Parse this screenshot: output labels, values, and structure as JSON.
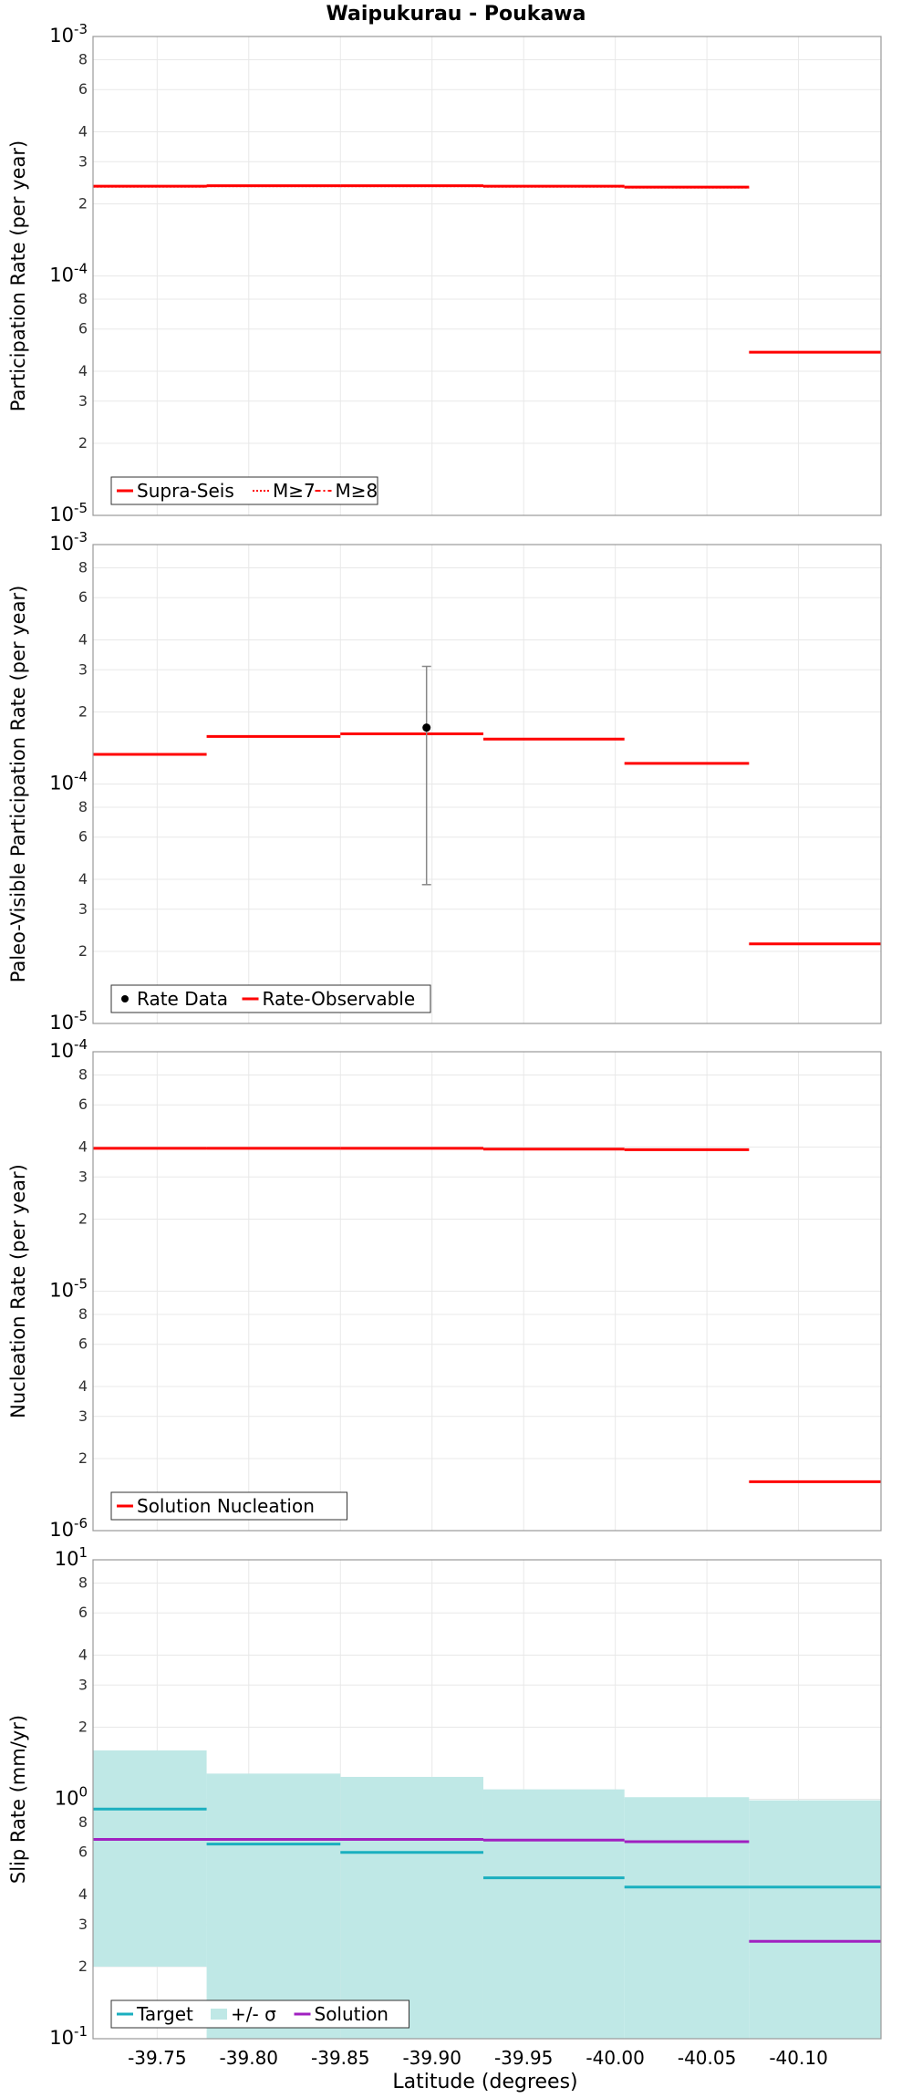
{
  "figure": {
    "title": "Waipukurau - Poukawa",
    "xlabel": "Latitude (degrees)"
  },
  "colors": {
    "red": "#ff0000",
    "target": "#1aafbf",
    "band": "#bfe8e6",
    "solution": "#a020c0",
    "grid": "#e8e8e8",
    "errorbar": "#888888"
  },
  "chart_data": [
    {
      "type": "line",
      "title": "Waipukurau - Poukawa",
      "xlabel": "",
      "ylabel": "Participation Rate (per year)",
      "yscale": "log",
      "ylim": [
        1e-05,
        0.001
      ],
      "xlim": [
        -39.715,
        -40.145
      ],
      "grid": true,
      "legend_position": "bottom-left",
      "legend": [
        "Supra-Seis",
        "M≥7",
        "M≥8"
      ],
      "series": [
        {
          "name": "Supra-Seis",
          "style": "solid",
          "segments": [
            {
              "x": [
                -39.715,
                -39.777
              ],
              "y": 0.000237
            },
            {
              "x": [
                -39.777,
                -39.85
              ],
              "y": 0.000238
            },
            {
              "x": [
                -39.85,
                -39.928
              ],
              "y": 0.000238
            },
            {
              "x": [
                -39.928,
                -40.005
              ],
              "y": 0.000237
            },
            {
              "x": [
                -40.005,
                -40.073
              ],
              "y": 0.000235
            },
            {
              "x": [
                -40.073,
                -40.145
              ],
              "y": 4.8e-05
            }
          ]
        },
        {
          "name": "M≥7",
          "style": "dotted",
          "segments": [
            {
              "x": [
                -39.715,
                -39.777
              ],
              "y": 0.000236
            },
            {
              "x": [
                -39.777,
                -39.85
              ],
              "y": 0.000237
            },
            {
              "x": [
                -39.85,
                -39.928
              ],
              "y": 0.000237
            },
            {
              "x": [
                -39.928,
                -40.005
              ],
              "y": 0.000236
            },
            {
              "x": [
                -40.005,
                -40.073
              ],
              "y": 0.000234
            }
          ]
        }
      ],
      "y_ticks": [
        "10-3",
        "8",
        "6",
        "4",
        "3",
        "2",
        "10-4",
        "8",
        "6",
        "4",
        "3",
        "2",
        "10-5"
      ]
    },
    {
      "type": "line",
      "title": "",
      "xlabel": "",
      "ylabel": "Paleo-Visible Participation Rate (per year)",
      "yscale": "log",
      "ylim": [
        1e-05,
        0.001
      ],
      "xlim": [
        -39.715,
        -40.145
      ],
      "grid": true,
      "legend_position": "bottom-left",
      "legend": [
        "Rate Data",
        "Rate-Observable"
      ],
      "points": [
        {
          "name": "Rate Data",
          "x": -39.897,
          "y": 0.000172,
          "y_low": 3.8e-05,
          "y_high": 0.00031
        }
      ],
      "series": [
        {
          "name": "Rate-Observable",
          "style": "solid",
          "segments": [
            {
              "x": [
                -39.715,
                -39.777
              ],
              "y": 0.000133
            },
            {
              "x": [
                -39.777,
                -39.85
              ],
              "y": 0.000158
            },
            {
              "x": [
                -39.85,
                -39.928
              ],
              "y": 0.000162
            },
            {
              "x": [
                -39.928,
                -40.005
              ],
              "y": 0.000154
            },
            {
              "x": [
                -40.005,
                -40.073
              ],
              "y": 0.000122
            },
            {
              "x": [
                -40.073,
                -40.145
              ],
              "y": 2.15e-05
            }
          ]
        }
      ],
      "y_ticks": [
        "10-3",
        "8",
        "6",
        "4",
        "3",
        "2",
        "10-4",
        "8",
        "6",
        "4",
        "3",
        "2",
        "10-5"
      ]
    },
    {
      "type": "line",
      "title": "",
      "xlabel": "",
      "ylabel": "Nucleation Rate (per year)",
      "yscale": "log",
      "ylim": [
        1e-06,
        0.0001
      ],
      "xlim": [
        -39.715,
        -40.145
      ],
      "grid": true,
      "legend_position": "bottom-left",
      "legend": [
        "Solution Nucleation"
      ],
      "series": [
        {
          "name": "Solution Nucleation",
          "style": "solid",
          "segments": [
            {
              "x": [
                -39.715,
                -39.777
              ],
              "y": 3.95e-05
            },
            {
              "x": [
                -39.777,
                -39.85
              ],
              "y": 3.95e-05
            },
            {
              "x": [
                -39.85,
                -39.928
              ],
              "y": 3.95e-05
            },
            {
              "x": [
                -39.928,
                -40.005
              ],
              "y": 3.92e-05
            },
            {
              "x": [
                -40.005,
                -40.073
              ],
              "y": 3.9e-05
            },
            {
              "x": [
                -40.073,
                -40.145
              ],
              "y": 1.6e-06
            }
          ]
        }
      ],
      "y_ticks": [
        "10-4",
        "8",
        "6",
        "4",
        "3",
        "2",
        "10-5",
        "8",
        "6",
        "4",
        "3",
        "2",
        "10-6"
      ]
    },
    {
      "type": "line",
      "title": "",
      "xlabel": "Latitude (degrees)",
      "ylabel": "Slip Rate (mm/yr)",
      "yscale": "log",
      "ylim": [
        0.1,
        10
      ],
      "xlim": [
        -39.715,
        -40.145
      ],
      "grid": true,
      "legend_position": "bottom-left",
      "legend": [
        "Target",
        "+/- σ",
        "Solution"
      ],
      "band": {
        "name": "+/- σ",
        "segments": [
          {
            "x": [
              -39.715,
              -39.777
            ],
            "low": 0.2,
            "high": 1.6
          },
          {
            "x": [
              -39.777,
              -39.85
            ],
            "low": 0.1,
            "high": 1.28
          },
          {
            "x": [
              -39.85,
              -39.928
            ],
            "low": 0.1,
            "high": 1.24
          },
          {
            "x": [
              -39.928,
              -40.005
            ],
            "low": 0.1,
            "high": 1.1
          },
          {
            "x": [
              -40.005,
              -40.073
            ],
            "low": 0.1,
            "high": 1.02
          },
          {
            "x": [
              -40.073,
              -40.145
            ],
            "low": 0.1,
            "high": 0.99
          }
        ]
      },
      "series": [
        {
          "name": "Target",
          "style": "solid",
          "segments": [
            {
              "x": [
                -39.715,
                -39.777
              ],
              "y": 0.91
            },
            {
              "x": [
                -39.777,
                -39.85
              ],
              "y": 0.65
            },
            {
              "x": [
                -39.85,
                -39.928
              ],
              "y": 0.6
            },
            {
              "x": [
                -39.928,
                -40.005
              ],
              "y": 0.47
            },
            {
              "x": [
                -40.005,
                -40.145
              ],
              "y": 0.43
            }
          ]
        },
        {
          "name": "Solution",
          "style": "solid",
          "segments": [
            {
              "x": [
                -39.715,
                -39.928
              ],
              "y": 0.68
            },
            {
              "x": [
                -39.928,
                -40.005
              ],
              "y": 0.675
            },
            {
              "x": [
                -40.005,
                -40.073
              ],
              "y": 0.665
            },
            {
              "x": [
                -40.073,
                -40.145
              ],
              "y": 0.255
            }
          ]
        }
      ],
      "y_ticks": [
        "10 1",
        "8",
        "6",
        "4",
        "3",
        "2",
        "10 0",
        "8",
        "6",
        "4",
        "3",
        "2",
        "10-1"
      ]
    }
  ],
  "x_ticks": [
    "-39.75",
    "-39.80",
    "-39.85",
    "-39.90",
    "-39.95",
    "-40.00",
    "-40.05",
    "-40.10"
  ]
}
